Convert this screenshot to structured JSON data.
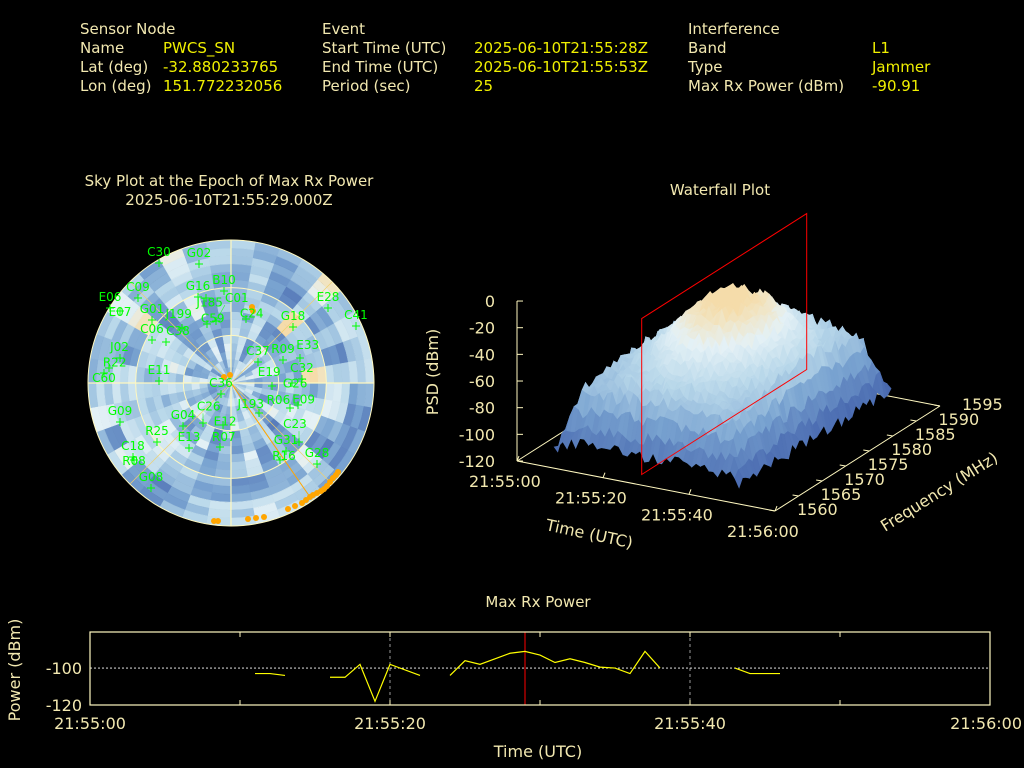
{
  "header": {
    "sensor": {
      "title": "Sensor Node",
      "name_label": "Name",
      "name": "PWCS_SN",
      "lat_label": "Lat (deg)",
      "lat": "-32.880233765",
      "lon_label": "Lon (deg)",
      "lon": "151.772232056"
    },
    "event": {
      "title": "Event",
      "start_label": "Start Time (UTC)",
      "start": "2025-06-10T21:55:28Z",
      "end_label": "End Time (UTC)",
      "end": "2025-06-10T21:55:53Z",
      "period_label": "Period (sec)",
      "period": "25"
    },
    "interference": {
      "title": "Interference",
      "band_label": "Band",
      "band": "L1",
      "type_label": "Type",
      "type": "Jammer",
      "power_label": "Max Rx Power (dBm)",
      "power": "-90.91"
    }
  },
  "colors": {
    "background": "#000000",
    "label": "#f2e8b0",
    "value": "#f0f000",
    "satellite": "#00ff00",
    "interference_track": "#ffa500",
    "marker": "#ff0000",
    "series": "#ffff00"
  },
  "chart_data": [
    {
      "type": "polar-heatmap",
      "title": "Sky Plot at the Epoch of Max Rx Power",
      "subtitle": "2025-06-10T21:55:29.000Z",
      "elevation_rings": [
        0,
        30,
        60
      ],
      "satellites": [
        "C30",
        "G02",
        "B10",
        "G16",
        "J185",
        "C09",
        "E06",
        "E07",
        "G01",
        "J199",
        "C59",
        "C01",
        "C24",
        "E28",
        "C41",
        "G18",
        "C06",
        "C38",
        "J02",
        "R22",
        "C60",
        "E11",
        "R09",
        "E33",
        "C37",
        "C32",
        "G26",
        "E19",
        "E09",
        "R06",
        "C36",
        "J193",
        "G09",
        "G04",
        "C26",
        "E12",
        "R25",
        "C18",
        "E13",
        "R07",
        "G31",
        "C23",
        "R16",
        "G28",
        "R08",
        "G08"
      ]
    },
    {
      "type": "surface",
      "title": "Waterfall Plot",
      "xlabel": "Time (UTC)",
      "ylabel": "Frequency (MHz)",
      "zlabel": "PSD (dBm)",
      "x_ticks": [
        "21:55:00",
        "21:55:20",
        "21:55:40",
        "21:56:00"
      ],
      "y_ticks": [
        "1560",
        "1565",
        "1570",
        "1575",
        "1580",
        "1585",
        "1590",
        "1595"
      ],
      "z_ticks": [
        "0",
        "-20",
        "-40",
        "-60",
        "-80",
        "-100",
        "-120"
      ],
      "zlim": [
        -120,
        0
      ],
      "ylim": [
        1560,
        1595
      ],
      "marker_time_sec": 29
    },
    {
      "type": "line",
      "title": "Max Rx Power",
      "xlabel": "Time (UTC)",
      "ylabel": "Power (dBm)",
      "x_ticks": [
        "21:55:00",
        "21:55:20",
        "21:55:40",
        "21:56:00"
      ],
      "y_ticks": [
        "-100",
        "-120"
      ],
      "xlim_sec": [
        0,
        60
      ],
      "ylim": [
        -120,
        -80.5
      ],
      "marker_time_sec": 29,
      "segments": [
        [
          [
            11,
            -103
          ],
          [
            12,
            -103
          ],
          [
            13,
            -104
          ]
        ],
        [
          [
            16,
            -105
          ],
          [
            17,
            -105
          ],
          [
            18,
            -98
          ],
          [
            19,
            -118
          ],
          [
            20,
            -98
          ],
          [
            22,
            -104
          ]
        ],
        [
          [
            24,
            -104
          ],
          [
            25,
            -96
          ],
          [
            26,
            -98
          ],
          [
            27,
            -95
          ],
          [
            28,
            -92
          ],
          [
            29,
            -91
          ],
          [
            30,
            -93
          ],
          [
            31,
            -97
          ],
          [
            32,
            -95
          ],
          [
            33,
            -97
          ],
          [
            34,
            -99.5
          ],
          [
            35,
            -100
          ],
          [
            36,
            -103
          ],
          [
            37,
            -91
          ],
          [
            38,
            -100
          ]
        ],
        [
          [
            43,
            -100
          ],
          [
            44,
            -103
          ],
          [
            46,
            -103
          ]
        ]
      ]
    }
  ]
}
